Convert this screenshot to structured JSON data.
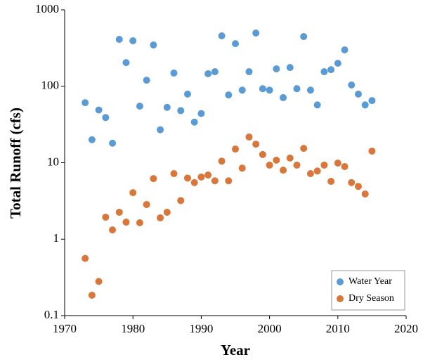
{
  "chart_data": {
    "type": "scatter",
    "x_label": "Year",
    "y_label": "Total Runoff (cfs)",
    "x": [
      1973,
      1974,
      1975,
      1976,
      1977,
      1978,
      1979,
      1980,
      1981,
      1982,
      1983,
      1984,
      1985,
      1986,
      1987,
      1988,
      1989,
      1990,
      1991,
      1992,
      1993,
      1994,
      1995,
      1996,
      1997,
      1998,
      1999,
      2000,
      2001,
      2002,
      2003,
      2004,
      2005,
      2006,
      2007,
      2008,
      2009,
      2010,
      2011,
      2012,
      2013,
      2014,
      2015
    ],
    "series": [
      {
        "name": "Water Year",
        "color": "#5b9bd5",
        "values": [
          61,
          20,
          49,
          39,
          18,
          411,
          204,
          394,
          55,
          120,
          347,
          27,
          53,
          149,
          48,
          79,
          34,
          44,
          146,
          155,
          457,
          77,
          361,
          89,
          155,
          497,
          93,
          89,
          169,
          71,
          176,
          93,
          447,
          89,
          57,
          155,
          165,
          200,
          299,
          104,
          79,
          57,
          65
        ]
      },
      {
        "name": "Dry Season",
        "color": "#d9773a",
        "values": [
          0.56,
          0.185,
          0.28,
          1.94,
          1.32,
          2.25,
          1.67,
          4.06,
          1.64,
          2.84,
          6.2,
          1.9,
          2.25,
          7.2,
          3.2,
          6.3,
          5.5,
          6.5,
          6.9,
          5.8,
          10.5,
          5.8,
          15.1,
          8.5,
          21.7,
          17.5,
          12.8,
          9.3,
          10.8,
          8.0,
          11.5,
          9.3,
          15.4,
          7.2,
          7.8,
          9.3,
          5.7,
          9.9,
          8.9,
          5.5,
          4.9,
          3.9,
          14.2
        ]
      }
    ],
    "xlim": [
      1970,
      2020
    ],
    "xticks": [
      1970,
      1980,
      1990,
      2000,
      2010,
      2020
    ],
    "ylim": [
      0.1,
      1000
    ],
    "yticks": [
      0.1,
      1,
      10,
      100,
      1000
    ],
    "yscale": "log",
    "grid": false,
    "legend_position": "lower right"
  }
}
